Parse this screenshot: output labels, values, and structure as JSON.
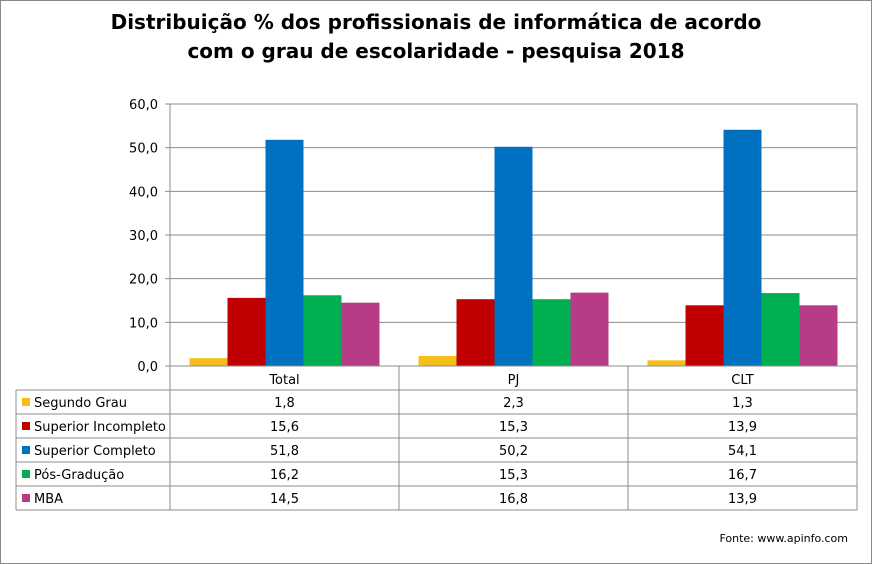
{
  "title": {
    "line1": "Distribuição % dos profissionais de informática de acordo",
    "line2": "com o grau de escolaridade - pesquisa 2018"
  },
  "source": "Fonte:  www.apinfo.com",
  "chart_data": {
    "type": "bar",
    "title": "Distribuição % dos profissionais de informática de acordo com o grau de escolaridade - pesquisa 2018",
    "categories": [
      "Total",
      "PJ",
      "CLT"
    ],
    "series": [
      {
        "name": "Segundo Grau",
        "color": "#f5be18",
        "values": [
          1.8,
          2.3,
          1.3
        ],
        "labels": [
          "1,8",
          "2,3",
          "1,3"
        ]
      },
      {
        "name": "Superior Incompleto",
        "color": "#c00000",
        "values": [
          15.6,
          15.3,
          13.9
        ],
        "labels": [
          "15,6",
          "15,3",
          "13,9"
        ]
      },
      {
        "name": "Superior Completo",
        "color": "#0070c0",
        "values": [
          51.8,
          50.2,
          54.1
        ],
        "labels": [
          "51,8",
          "50,2",
          "54,1"
        ]
      },
      {
        "name": "Pós-Gradução",
        "color": "#00b050",
        "values": [
          16.2,
          15.3,
          16.7
        ],
        "labels": [
          "16,2",
          "15,3",
          "16,7"
        ]
      },
      {
        "name": "MBA",
        "color": "#b83b86",
        "values": [
          14.5,
          16.8,
          13.9
        ],
        "labels": [
          "14,5",
          "16,8",
          "13,9"
        ]
      }
    ],
    "yticks": [
      "0,0",
      "10,0",
      "20,0",
      "30,0",
      "40,0",
      "50,0",
      "60,0"
    ],
    "ylim": [
      0,
      60
    ],
    "grid": true,
    "legend": "data-table"
  }
}
